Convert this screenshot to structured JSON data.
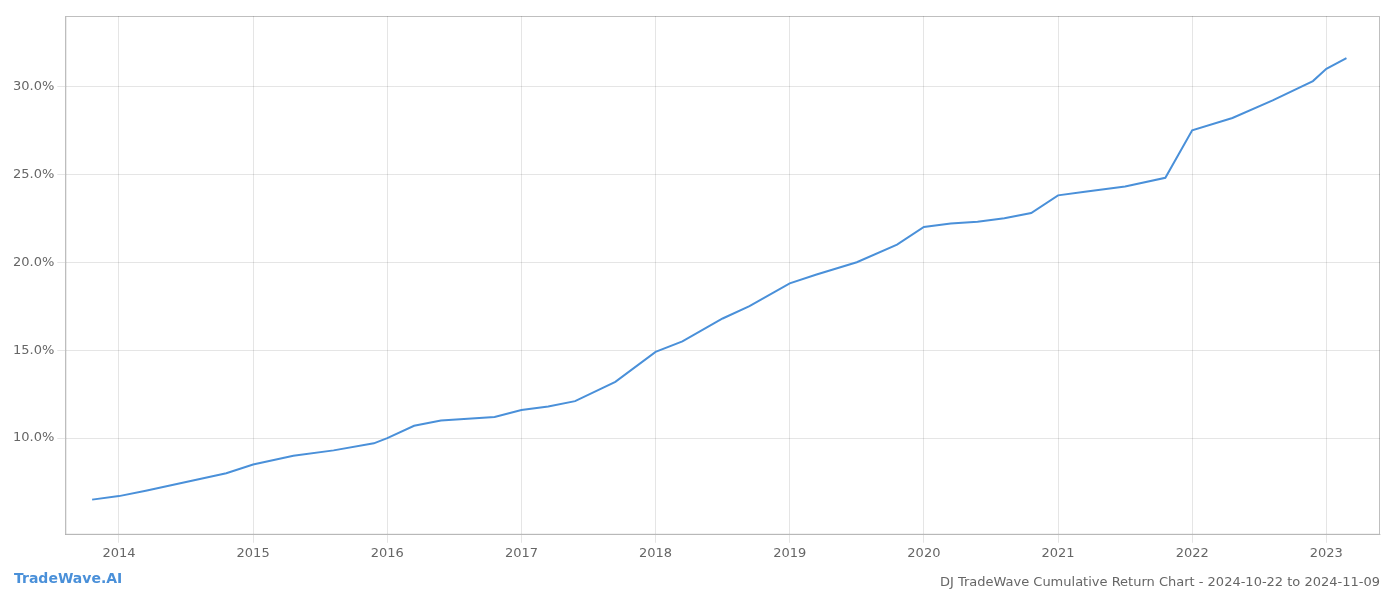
{
  "chart_data": {
    "type": "line",
    "title": "DJ TradeWave Cumulative Return Chart - 2024-10-22 to 2024-11-09",
    "annotations": [
      {
        "text": "TradeWave.AI",
        "color": "#4a90d9"
      }
    ],
    "x": [
      2013.8,
      2014.0,
      2014.2,
      2014.5,
      2014.8,
      2015.0,
      2015.3,
      2015.6,
      2015.9,
      2016.0,
      2016.2,
      2016.4,
      2016.6,
      2016.8,
      2017.0,
      2017.2,
      2017.4,
      2017.7,
      2018.0,
      2018.2,
      2018.5,
      2018.7,
      2019.0,
      2019.2,
      2019.5,
      2019.8,
      2020.0,
      2020.2,
      2020.4,
      2020.6,
      2020.8,
      2021.0,
      2021.2,
      2021.5,
      2021.8,
      2022.0,
      2022.3,
      2022.6,
      2022.9,
      2023.0,
      2023.15
    ],
    "values": [
      6.5,
      6.7,
      7.0,
      7.5,
      8.0,
      8.5,
      9.0,
      9.3,
      9.7,
      10.0,
      10.7,
      11.0,
      11.1,
      11.2,
      11.6,
      11.8,
      12.1,
      13.2,
      14.9,
      15.5,
      16.8,
      17.5,
      18.8,
      19.3,
      20.0,
      21.0,
      22.0,
      22.2,
      22.3,
      22.5,
      22.8,
      23.8,
      24.0,
      24.3,
      24.8,
      27.5,
      28.2,
      29.2,
      30.3,
      31.0,
      31.6
    ],
    "color": "#4a90d9",
    "xlim": [
      2013.6,
      2023.4
    ],
    "ylim": [
      4.5,
      34.0
    ],
    "xticks": [
      2014,
      2015,
      2016,
      2017,
      2018,
      2019,
      2020,
      2021,
      2022,
      2023
    ],
    "yticks": [
      {
        "value": 10.0,
        "label": "10.0%"
      },
      {
        "value": 15.0,
        "label": "15.0%"
      },
      {
        "value": 20.0,
        "label": "20.0%"
      },
      {
        "value": 25.0,
        "label": "25.0%"
      },
      {
        "value": 30.0,
        "label": "30.0%"
      }
    ],
    "grid": true
  }
}
